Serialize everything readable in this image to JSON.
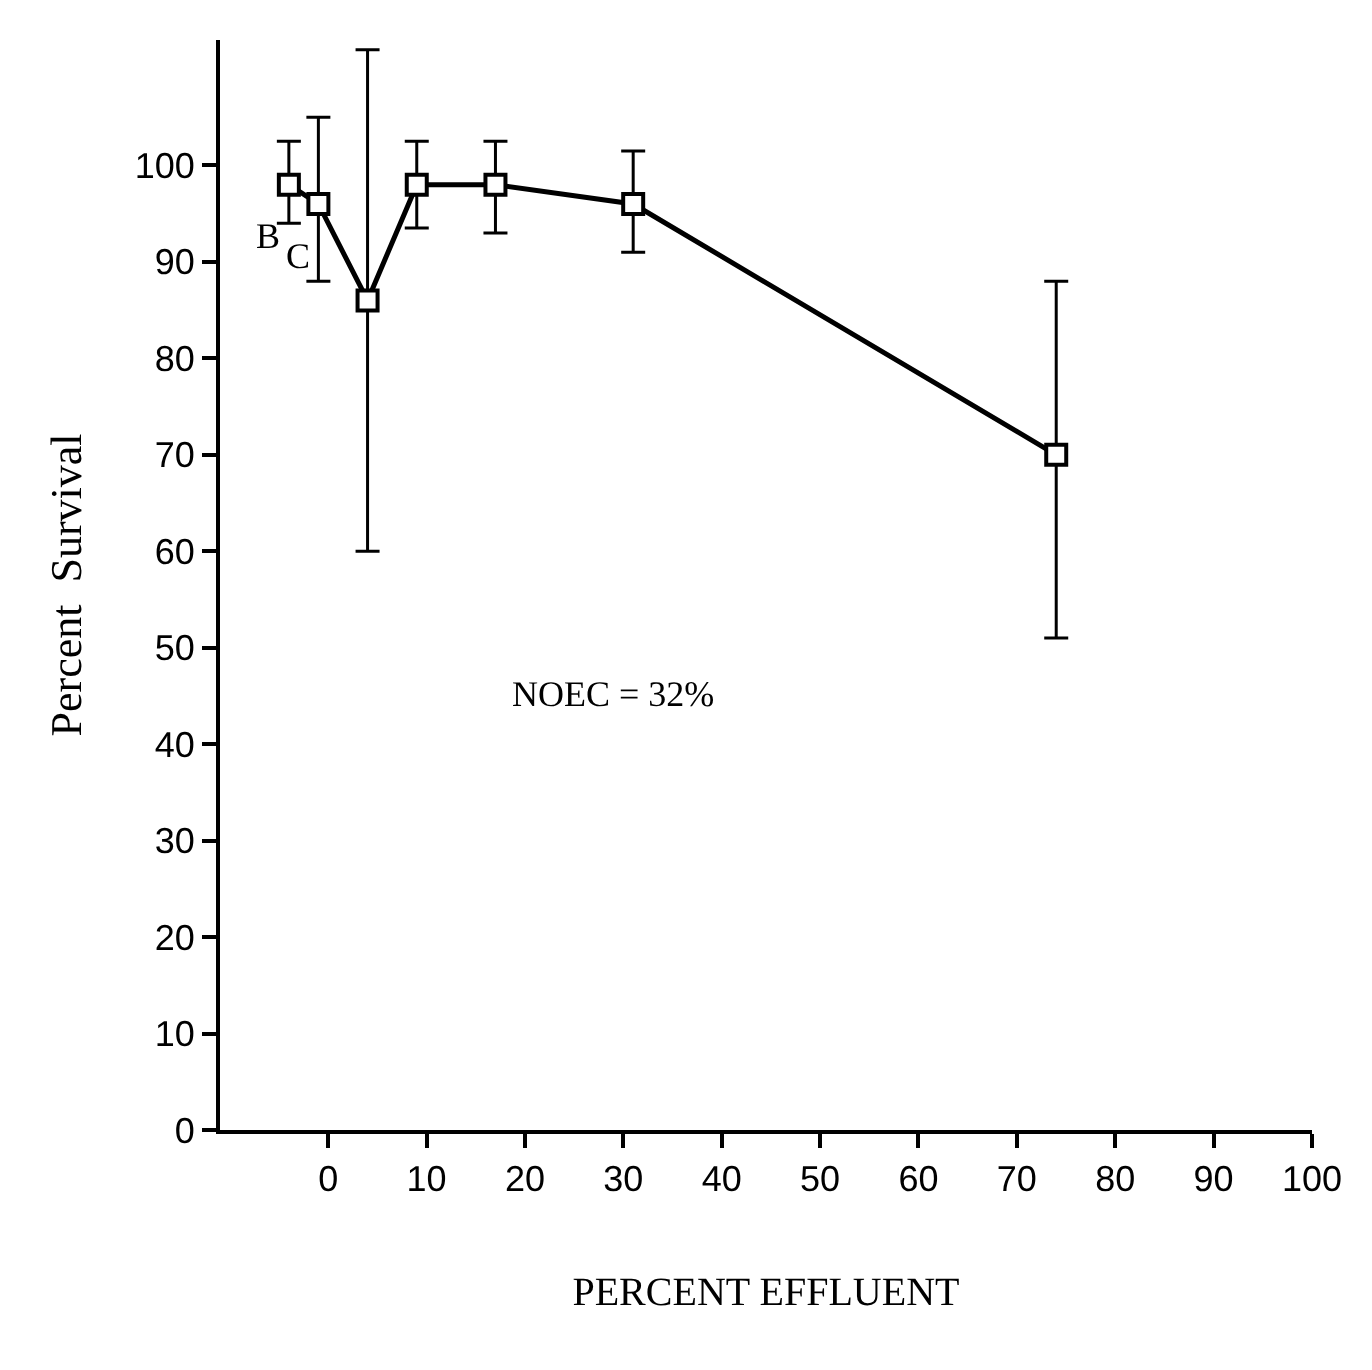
{
  "chart_data": {
    "type": "line",
    "xlabel": "PERCENT EFFLUENT",
    "ylabel": "Percent  Survival",
    "x": [
      -4,
      -1,
      4,
      9,
      17,
      31,
      74
    ],
    "series": [
      {
        "color": "#000000",
        "values": [
          98,
          96,
          86,
          98,
          98,
          96,
          70
        ],
        "errors": [
          [
            94,
            102.5
          ],
          [
            88,
            105
          ],
          [
            60,
            112
          ],
          [
            93.5,
            102.5
          ],
          [
            93,
            102.5
          ],
          [
            91,
            101.5
          ],
          [
            51,
            88
          ]
        ]
      }
    ],
    "xlim": [
      -11,
      100
    ],
    "xticks": [
      0,
      10,
      20,
      30,
      40,
      50,
      60,
      70,
      80,
      90,
      100
    ],
    "ylim": [
      0,
      113
    ],
    "yticks": [
      0,
      10,
      20,
      30,
      40,
      50,
      60,
      70,
      80,
      90,
      100
    ],
    "annotations": [
      {
        "text": "B",
        "x": -4,
        "y": 98
      },
      {
        "text": "C",
        "x": -1,
        "y": 96
      },
      "NOEC = 32%"
    ],
    "marker": "square",
    "line_style": "solid",
    "legend": false
  }
}
